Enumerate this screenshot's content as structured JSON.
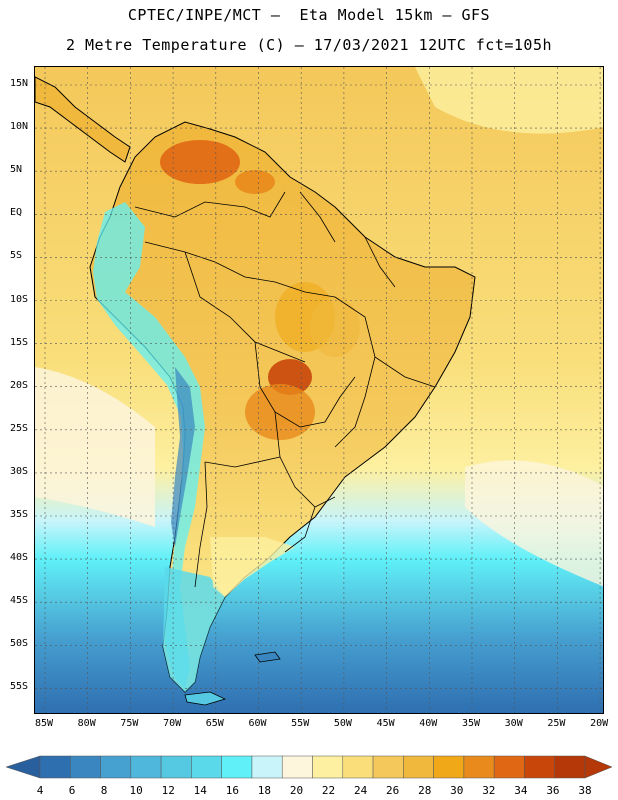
{
  "header": {
    "title_line1": "CPTEC/INPE/MCT –  Eta Model 15km – GFS",
    "title_line2": "2 Metre Temperature (C) – 17/03/2021 12UTC fct=105h"
  },
  "map": {
    "variable": "2 Metre Temperature",
    "units": "C",
    "lat_labels": [
      "15N",
      "10N",
      "5N",
      "EQ",
      "5S",
      "10S",
      "15S",
      "20S",
      "25S",
      "30S",
      "35S",
      "40S",
      "45S",
      "50S",
      "55S"
    ],
    "lon_labels": [
      "85W",
      "80W",
      "75W",
      "70W",
      "65W",
      "60W",
      "55W",
      "50W",
      "45W",
      "40W",
      "35W",
      "30W",
      "25W",
      "20W"
    ]
  },
  "colorbar": {
    "levels": [
      "4",
      "6",
      "8",
      "10",
      "12",
      "14",
      "16",
      "18",
      "20",
      "22",
      "24",
      "26",
      "28",
      "30",
      "32",
      "34",
      "36",
      "38"
    ],
    "colors": [
      "#2e6fb0",
      "#3a86c0",
      "#46a0d0",
      "#4fb6dc",
      "#55c8e2",
      "#5ad9ea",
      "#5ff0f8",
      "#c8f4fa",
      "#fdf5dc",
      "#fdf0a0",
      "#f9de7a",
      "#f4c85a",
      "#f0b83c",
      "#f0a818",
      "#e88a1c",
      "#e06814",
      "#c8460a",
      "#b43808"
    ],
    "under_color": "#2a5f9e",
    "over_color": "#b43808"
  }
}
